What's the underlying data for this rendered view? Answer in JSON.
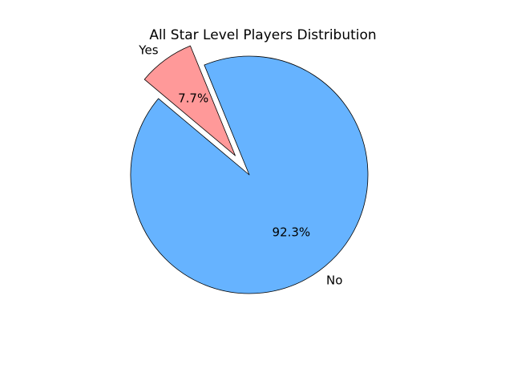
{
  "chart_data": {
    "type": "pie",
    "title": "All Star Level Players Distribution",
    "slices": [
      {
        "label": "No",
        "value": 92.3,
        "pct_label": "92.3%",
        "color": "#66b3ff",
        "explode": 0
      },
      {
        "label": "Yes",
        "value": 7.7,
        "pct_label": "7.7%",
        "color": "#ff9999",
        "explode": 0.2
      }
    ],
    "edge_color": "#000000",
    "start_angle": 140
  }
}
